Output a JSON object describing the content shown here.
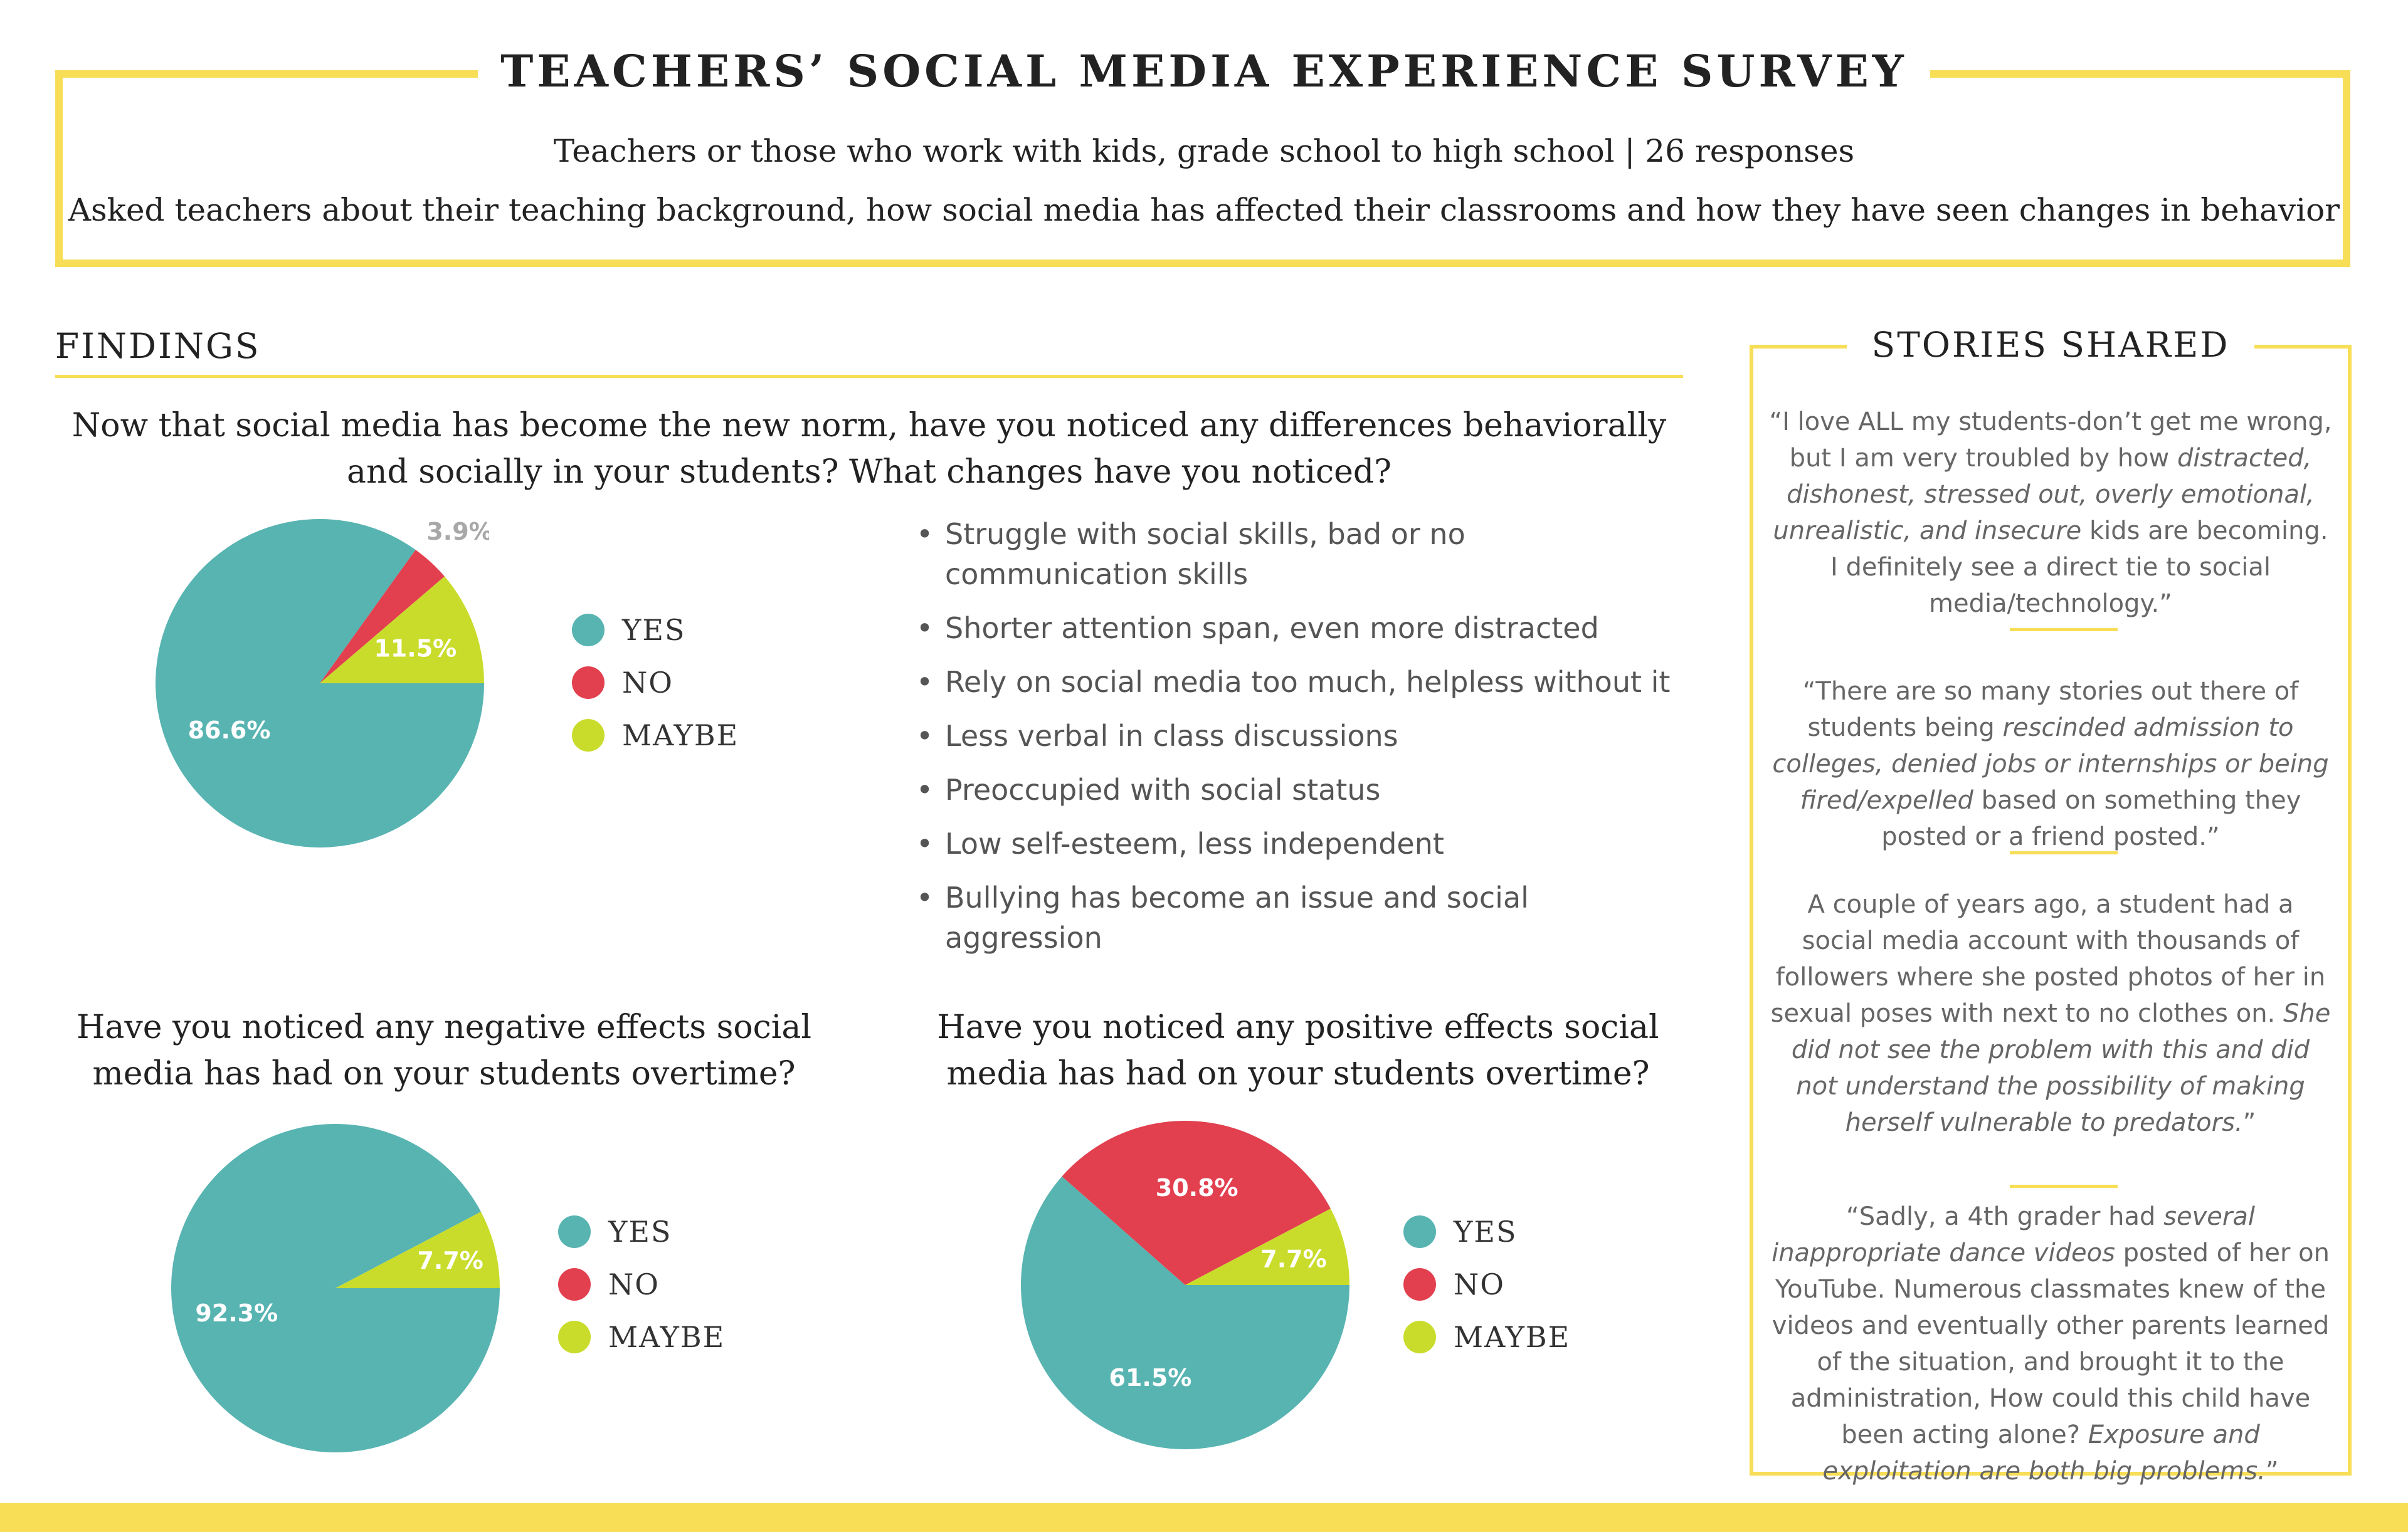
{
  "header": {
    "title": "TEACHERS’ SOCIAL MEDIA EXPERIENCE SURVEY",
    "subtitle_1": "Teachers or those who work with kids, grade school to high school | 26 responses",
    "subtitle_2": "Asked teachers about their teaching background, how social media has affected their classrooms and how they have seen changes in behavior"
  },
  "findings": {
    "title": "FINDINGS",
    "legend": [
      "YES",
      "NO",
      "MAYBE"
    ],
    "bullets": [
      "Struggle with social skills, bad or no communication skills",
      "Shorter attention span, even more distracted",
      "Rely on social media too much, helpless without it",
      "Less verbal in class discussions",
      "Preoccupied with social status",
      "Low self-esteem, less independent",
      "Bullying has become an issue and social aggression"
    ]
  },
  "colors": {
    "yes": "#58b4b1",
    "no": "#e2404f",
    "maybe": "#c9dc2b",
    "accent": "#f7de56"
  },
  "chart_data": [
    {
      "type": "pie",
      "title": "Now that social media has become the new norm, have you noticed any differences behaviorally and socially in your students? What changes have you noticed?",
      "categories": [
        "YES",
        "NO",
        "MAYBE"
      ],
      "values": [
        86.6,
        3.9,
        11.5
      ],
      "labels": [
        "86.6%",
        "3.9%",
        "11.5%"
      ],
      "legend": "right"
    },
    {
      "type": "pie",
      "title": "Have you noticed any negative effects social media has had on your students overtime?",
      "categories": [
        "YES",
        "NO",
        "MAYBE"
      ],
      "values": [
        92.3,
        0,
        7.7
      ],
      "labels": [
        "92.3%",
        "",
        "7.7%"
      ],
      "legend": "right"
    },
    {
      "type": "pie",
      "title": "Have you noticed any positive effects social media has had on your students overtime?",
      "categories": [
        "YES",
        "NO",
        "MAYBE"
      ],
      "values": [
        61.5,
        30.8,
        7.7
      ],
      "labels": [
        "61.5%",
        "30.8%",
        "7.7%"
      ],
      "legend": "right"
    }
  ],
  "stories": {
    "title": "STORIES SHARED",
    "items": [
      [
        {
          "t": "“I love ALL my students-don’t get me wrong, but I am very troubled by how ",
          "i": false
        },
        {
          "t": "distracted, dishonest, stressed out, overly emotional, unrealistic, and insecure",
          "i": true
        },
        {
          "t": " kids are becoming.  I definitely see a direct tie to social media/technology.”",
          "i": false
        }
      ],
      [
        {
          "t": "“There are so many stories out there of students being ",
          "i": false
        },
        {
          "t": "rescinded admission to colleges, denied jobs or internships or being fired/expelled",
          "i": true
        },
        {
          "t": " based on something they posted or a friend posted.”",
          "i": false
        }
      ],
      [
        {
          "t": "A couple of years ago, a student had a social media account with thousands of followers where she posted photos of her in sexual poses with next to no clothes on. ",
          "i": false
        },
        {
          "t": "She did not see the problem with this and did not understand the possibility of making herself vulnerable to predators.",
          "i": true
        },
        {
          "t": "”",
          "i": false
        }
      ],
      [
        {
          "t": "“Sadly, a 4th grader had ",
          "i": false
        },
        {
          "t": "several inappropriate dance videos",
          "i": true
        },
        {
          "t": " posted of her on YouTube. Numerous classmates knew of the videos and eventually other parents learned of the situation, and brought it to the administration, How could this child have been acting alone? ",
          "i": false
        },
        {
          "t": "Exposure and exploitation are both big problems.",
          "i": true
        },
        {
          "t": "”",
          "i": false
        }
      ]
    ]
  }
}
